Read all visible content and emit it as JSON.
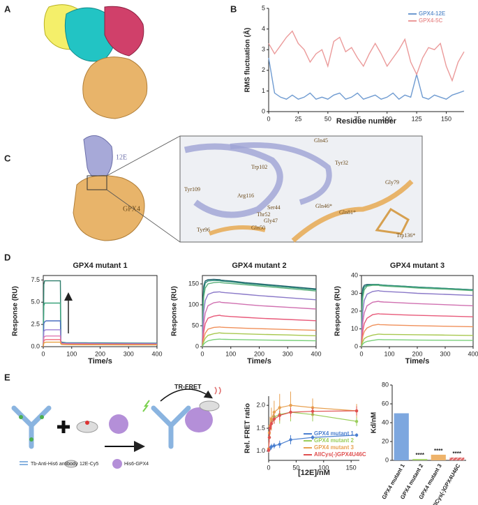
{
  "panel_labels": [
    "A",
    "B",
    "C",
    "D",
    "E"
  ],
  "structure_labels": [
    "12E",
    "GPX4"
  ],
  "residue_labels": [
    "Gln45",
    "Trp102",
    "Tyr32",
    "Gly79",
    "Tyr109",
    "Arg116",
    "Ser44",
    "Thr52",
    "Gly47",
    "Gln46*",
    "Gln81*",
    "Trp136*",
    "Tyr96",
    "Gln50"
  ],
  "schematic_labels": [
    "TR-FRET",
    "Tb-Anti-His6 antibody",
    "12E-Cy5",
    "His6-GPX4"
  ],
  "chart_data": [
    {
      "type": "line",
      "xlabel": "Residue number",
      "ylabel": "RMS fluctuation (Å)",
      "legend": "upper right",
      "x": [
        0,
        5,
        10,
        15,
        20,
        25,
        30,
        35,
        40,
        45,
        50,
        55,
        60,
        65,
        70,
        75,
        80,
        85,
        90,
        95,
        100,
        105,
        110,
        115,
        120,
        125,
        130,
        135,
        140,
        145,
        150,
        155,
        160,
        165
      ],
      "xlim": [
        0,
        165
      ],
      "xticks": [
        0,
        25,
        50,
        75,
        100,
        125,
        150
      ],
      "ylim": [
        0,
        5
      ],
      "yticks": [
        0,
        1,
        2,
        3,
        4,
        5
      ],
      "series": [
        {
          "name": "GPX4-12E",
          "color": "#6f9bd1",
          "values": [
            2.6,
            0.9,
            0.7,
            0.6,
            0.8,
            0.6,
            0.7,
            0.9,
            0.6,
            0.7,
            0.6,
            0.8,
            0.9,
            0.6,
            0.7,
            0.9,
            0.6,
            0.7,
            0.8,
            0.6,
            0.7,
            0.9,
            0.6,
            0.8,
            0.7,
            1.8,
            0.7,
            0.6,
            0.8,
            0.7,
            0.6,
            0.8,
            0.9,
            1.0
          ]
        },
        {
          "name": "GPX4-5C",
          "color": "#eb9a9a",
          "values": [
            3.3,
            2.8,
            3.2,
            3.6,
            3.9,
            3.3,
            3.0,
            2.4,
            2.8,
            3.0,
            2.2,
            3.4,
            3.6,
            2.9,
            3.1,
            2.6,
            2.2,
            2.8,
            3.3,
            2.8,
            2.2,
            2.6,
            3.0,
            3.5,
            2.4,
            1.8,
            2.6,
            3.1,
            3.0,
            3.3,
            2.2,
            1.5,
            2.4,
            2.9
          ]
        }
      ]
    },
    {
      "type": "line",
      "title": "GPX4 mutant 1",
      "xlabel": "Time/s",
      "ylabel": "Response (RU)",
      "x": [
        0,
        2,
        5,
        10,
        20,
        40,
        60,
        62,
        65,
        80,
        100,
        150,
        200,
        300,
        400
      ],
      "xlim": [
        0,
        400
      ],
      "xticks": [
        0,
        100,
        200,
        300,
        400
      ],
      "ylim": [
        0,
        8
      ],
      "yticks": [
        {
          "value": 0,
          "label": "0.0"
        },
        {
          "value": 2.5,
          "label": "2.5"
        },
        {
          "value": 5,
          "label": "5.0"
        },
        {
          "value": 7.5,
          "label": "7.5"
        }
      ],
      "series": [
        {
          "color": "#2e7d6b",
          "values": [
            0,
            7.0,
            7.4,
            7.4,
            7.4,
            7.4,
            7.4,
            0.6,
            0.5,
            0.45,
            0.44,
            0.43,
            0.42,
            0.41,
            0.4
          ]
        },
        {
          "color": "#3aa37c",
          "values": [
            0,
            4.6,
            4.9,
            4.9,
            4.9,
            4.9,
            4.9,
            0.55,
            0.45,
            0.42,
            0.41,
            0.4,
            0.39,
            0.38,
            0.37
          ]
        },
        {
          "color": "#4a6fc0",
          "values": [
            0,
            2.6,
            2.8,
            2.9,
            2.9,
            2.9,
            2.9,
            0.5,
            0.42,
            0.4,
            0.39,
            0.38,
            0.37,
            0.36,
            0.35
          ]
        },
        {
          "color": "#9b7fd4",
          "values": [
            0,
            1.7,
            1.85,
            1.9,
            1.9,
            1.9,
            1.9,
            0.45,
            0.4,
            0.37,
            0.36,
            0.35,
            0.34,
            0.33,
            0.32
          ]
        },
        {
          "color": "#e07bb4",
          "values": [
            0,
            1.0,
            1.15,
            1.2,
            1.2,
            1.2,
            1.2,
            0.4,
            0.35,
            0.33,
            0.32,
            0.31,
            0.3,
            0.29,
            0.28
          ]
        },
        {
          "color": "#f06b7b",
          "values": [
            0,
            0.65,
            0.75,
            0.8,
            0.8,
            0.8,
            0.8,
            0.35,
            0.3,
            0.28,
            0.27,
            0.26,
            0.25,
            0.25,
            0.24
          ]
        },
        {
          "color": "#e8a040",
          "values": [
            0,
            0.4,
            0.47,
            0.5,
            0.5,
            0.5,
            0.5,
            0.3,
            0.25,
            0.23,
            0.22,
            0.21,
            0.21,
            0.2,
            0.2
          ]
        }
      ]
    },
    {
      "type": "line",
      "title": "GPX4 mutant 2",
      "xlabel": "Time/s",
      "ylabel": "Response (RU)",
      "x": [
        0,
        2,
        5,
        10,
        20,
        40,
        60,
        62,
        65,
        80,
        100,
        150,
        200,
        300,
        400
      ],
      "xlim": [
        0,
        400
      ],
      "xticks": [
        0,
        100,
        200,
        300,
        400
      ],
      "ylim": [
        0,
        170
      ],
      "yticks": [
        0,
        50,
        100,
        150
      ],
      "series": [
        {
          "color": "#1f5f6b",
          "values": [
            0,
            110,
            145,
            157,
            160,
            161,
            160,
            160,
            159,
            158,
            157,
            153,
            150,
            144,
            138
          ]
        },
        {
          "color": "#2e8f7a",
          "values": [
            0,
            95,
            135,
            152,
            157,
            158,
            158,
            158,
            157,
            156,
            155,
            151,
            148,
            142,
            136
          ]
        },
        {
          "color": "#5ab07a",
          "values": [
            0,
            80,
            120,
            140,
            150,
            153,
            154,
            154,
            153,
            152,
            151,
            148,
            145,
            139,
            133
          ]
        },
        {
          "color": "#8a78c8",
          "values": [
            0,
            50,
            85,
            110,
            125,
            130,
            131,
            131,
            130,
            129,
            128,
            125,
            122,
            117,
            112
          ]
        },
        {
          "color": "#d070b0",
          "values": [
            0,
            30,
            55,
            80,
            98,
            105,
            107,
            107,
            106,
            105,
            104,
            101,
            98,
            94,
            90
          ]
        },
        {
          "color": "#e85a7a",
          "values": [
            0,
            18,
            35,
            55,
            68,
            73,
            75,
            75,
            74,
            73,
            72,
            70,
            68,
            65,
            62
          ]
        },
        {
          "color": "#f0905a",
          "values": [
            0,
            10,
            20,
            32,
            42,
            46,
            47,
            47,
            46.5,
            46,
            45.5,
            44,
            43,
            41,
            39
          ]
        },
        {
          "color": "#a8c850",
          "values": [
            0,
            6,
            12,
            20,
            27,
            31,
            33,
            33,
            32.5,
            32,
            31.5,
            30.5,
            29.5,
            28,
            26
          ]
        },
        {
          "color": "#7ad07a",
          "values": [
            0,
            3,
            6,
            10,
            14,
            17,
            18,
            18,
            17.8,
            17.5,
            17.2,
            16.5,
            16,
            15,
            14
          ]
        }
      ]
    },
    {
      "type": "line",
      "title": "GPX4 mutant 3",
      "xlabel": "Time/s",
      "ylabel": "Response (RU)",
      "x": [
        0,
        2,
        5,
        10,
        20,
        40,
        60,
        62,
        65,
        80,
        100,
        150,
        200,
        300,
        400
      ],
      "xlim": [
        0,
        400
      ],
      "xticks": [
        0,
        100,
        200,
        300,
        400
      ],
      "ylim": [
        0,
        40
      ],
      "yticks": [
        0,
        10,
        20,
        30,
        40
      ],
      "series": [
        {
          "color": "#1f5f6b",
          "values": [
            0,
            28,
            33,
            34.5,
            35,
            35,
            35,
            35,
            34.8,
            34.6,
            34.4,
            34,
            33.5,
            32.8,
            32
          ]
        },
        {
          "color": "#2e8f7a",
          "values": [
            0,
            25,
            31,
            33.5,
            34.5,
            35,
            35,
            35,
            34.8,
            34.6,
            34.4,
            34,
            33.5,
            32.8,
            32
          ]
        },
        {
          "color": "#5ab07a",
          "values": [
            0,
            20,
            28,
            32,
            34,
            34.5,
            34.5,
            34.5,
            34.3,
            34.1,
            33.9,
            33.5,
            33,
            32.3,
            31.5
          ]
        },
        {
          "color": "#8a78c8",
          "values": [
            0,
            12,
            20,
            26,
            29.5,
            31,
            31.5,
            31.5,
            31.3,
            31.1,
            30.9,
            30.5,
            30,
            29.4,
            28.8
          ]
        },
        {
          "color": "#d070b0",
          "values": [
            0,
            8,
            14,
            19,
            23,
            25,
            25.5,
            25.5,
            25.3,
            25.1,
            25,
            24.6,
            24.2,
            23.6,
            23
          ]
        },
        {
          "color": "#e85a7a",
          "values": [
            0,
            5,
            9,
            13,
            16,
            18,
            18.5,
            18.5,
            18.4,
            18.3,
            18.2,
            17.9,
            17.6,
            17.2,
            16.8
          ]
        },
        {
          "color": "#f0905a",
          "values": [
            0,
            3,
            6,
            8.5,
            10.5,
            12,
            12.5,
            12.5,
            12.4,
            12.3,
            12.2,
            12,
            11.8,
            11.5,
            11.2
          ]
        },
        {
          "color": "#a8c850",
          "values": [
            0,
            1.5,
            3,
            4.5,
            5.5,
            6.5,
            7,
            7,
            7,
            6.9,
            6.9,
            6.8,
            6.7,
            6.5,
            6.3
          ]
        },
        {
          "color": "#7ad07a",
          "values": [
            0,
            0.8,
            1.5,
            2.3,
            3,
            3.5,
            4,
            4,
            4,
            3.9,
            3.9,
            3.8,
            3.7,
            3.6,
            3.5
          ]
        }
      ]
    },
    {
      "type": "line",
      "xlabel": "[12E]/nM",
      "ylabel": "Rel. FRET ratio",
      "legend": "lower right",
      "markers": true,
      "x": [
        0,
        1.25,
        2.5,
        5,
        10,
        20,
        40,
        80,
        160
      ],
      "xlim": [
        0,
        165
      ],
      "xticks": [
        0,
        50,
        100,
        150
      ],
      "ylim": [
        0.8,
        2.2
      ],
      "yticks": [
        {
          "value": 1,
          "label": "1.0"
        },
        {
          "value": 1.5,
          "label": "1.5"
        },
        {
          "value": 2,
          "label": "2.0"
        }
      ],
      "series": [
        {
          "name": "GPX4 mutant 1",
          "color": "#4a7fd0",
          "values": [
            1.02,
            1.05,
            1.06,
            1.1,
            1.12,
            1.15,
            1.25,
            1.3,
            1.35
          ],
          "errors": [
            0.05,
            0.05,
            0.05,
            0.06,
            0.06,
            0.08,
            0.1,
            0.05,
            0.04
          ]
        },
        {
          "name": "GPX4 mutant 2",
          "color": "#9acd5a",
          "values": [
            1.05,
            1.3,
            1.5,
            1.6,
            1.75,
            1.8,
            1.85,
            1.8,
            1.65
          ],
          "errors": [
            0.05,
            0.1,
            0.1,
            0.12,
            0.15,
            0.2,
            0.2,
            0.15,
            0.1
          ]
        },
        {
          "name": "GPX4 mutant 3",
          "color": "#e8a050",
          "values": [
            1.05,
            1.4,
            1.55,
            1.7,
            1.85,
            1.95,
            2.0,
            1.95,
            1.88
          ],
          "errors": [
            0.05,
            0.15,
            0.2,
            0.25,
            0.25,
            0.3,
            0.3,
            0.2,
            0.15
          ]
        },
        {
          "name": "AllCys(-)GPX4U46C",
          "color": "#e05050",
          "values": [
            1.02,
            1.3,
            1.5,
            1.6,
            1.7,
            1.78,
            1.85,
            1.87,
            1.88
          ],
          "errors": [
            0.05,
            0.1,
            0.08,
            0.08,
            0.1,
            0.1,
            0.1,
            0.08,
            0.1
          ]
        }
      ]
    },
    {
      "type": "bar",
      "ylabel": "Kd/nM",
      "categories": [
        "GPX4 mutant 1",
        "GPX4 mutant 2",
        "GPX4 mutant 3",
        "AllCys(-)GPX4U46C"
      ],
      "values": [
        50,
        1.5,
        6,
        3
      ],
      "colors": [
        "#7da7df",
        "#a8d46f",
        "#eeb36a",
        "#e06a6a"
      ],
      "annotations": [
        null,
        "****",
        "****",
        "****"
      ],
      "ylim": [
        0,
        80
      ],
      "yticks": [
        0,
        20,
        40,
        60,
        80
      ]
    }
  ]
}
